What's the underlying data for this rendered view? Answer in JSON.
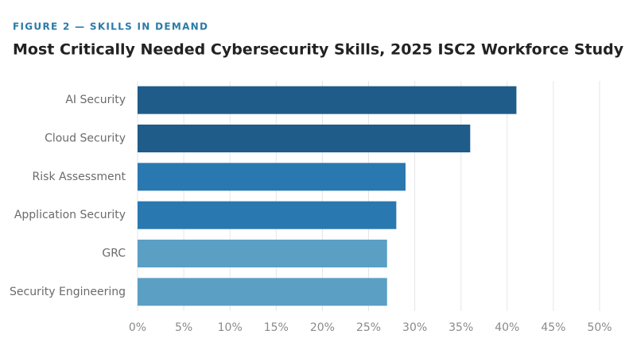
{
  "chart_data": {
    "type": "bar",
    "orientation": "horizontal",
    "kicker": "FIGURE 2 — SKILLS IN DEMAND",
    "title": "Most Critically Needed Cybersecurity Skills, 2025 ISC2 Workforce Study",
    "categories": [
      "AI Security",
      "Cloud Security",
      "Risk Assessment",
      "Application Security",
      "GRC",
      "Security Engineering"
    ],
    "values": [
      41,
      36,
      29,
      28,
      27,
      27
    ],
    "colors": [
      "#1f5c8a",
      "#1f5c8a",
      "#2a78b0",
      "#2a78b0",
      "#5b9fc4",
      "#5b9fc4"
    ],
    "xlim": [
      0,
      50
    ],
    "xticks": [
      {
        "value": 0,
        "label": "0%"
      },
      {
        "value": 5,
        "label": "5%"
      },
      {
        "value": 10,
        "label": "10%"
      },
      {
        "value": 15,
        "label": "15%"
      },
      {
        "value": 20,
        "label": "20%"
      },
      {
        "value": 25,
        "label": "25%"
      },
      {
        "value": 30,
        "label": "30%"
      },
      {
        "value": 35,
        "label": "35%"
      },
      {
        "value": 40,
        "label": "40%"
      },
      {
        "value": 45,
        "label": "45%"
      },
      {
        "value": 50,
        "label": "50%"
      }
    ],
    "grid": true
  }
}
